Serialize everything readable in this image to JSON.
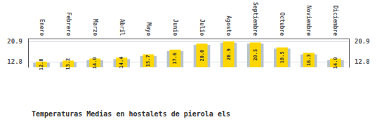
{
  "chart_data": {
    "type": "bar",
    "title": "Temperaturas Medias en hostalets de pierola els",
    "categories": [
      "Enero",
      "Febrero",
      "Marzo",
      "Abril",
      "Mayo",
      "Junio",
      "Julio",
      "Agosto",
      "Septiembre",
      "Octubre",
      "Noviembre",
      "Diciembre"
    ],
    "series": [
      {
        "color": "#B8C4CC",
        "values": [
          12.3,
          12.6,
          13.4,
          13.8,
          15.0,
          17.0,
          19.5,
          20.4,
          20.0,
          18.0,
          15.7,
          13.4
        ]
      },
      {
        "color": "#FFD700",
        "values": [
          12.8,
          13.2,
          14.0,
          14.4,
          15.7,
          17.6,
          20.0,
          20.9,
          20.5,
          18.5,
          16.3,
          14.0
        ],
        "value_labels": [
          "12.8",
          "13.2",
          "14.0",
          "14.4",
          "15.7",
          "17.6",
          "20.0",
          "20.9",
          "20.5",
          "18.5",
          "16.3",
          "14.0"
        ],
        "data_labels": true
      }
    ],
    "ylim": [
      10.5,
      22.0
    ],
    "yticks": [
      12.8,
      20.9
    ],
    "y2lim": [
      10.5,
      22.0
    ],
    "y2ticks": [
      12.8,
      20.9
    ],
    "grid": true
  }
}
